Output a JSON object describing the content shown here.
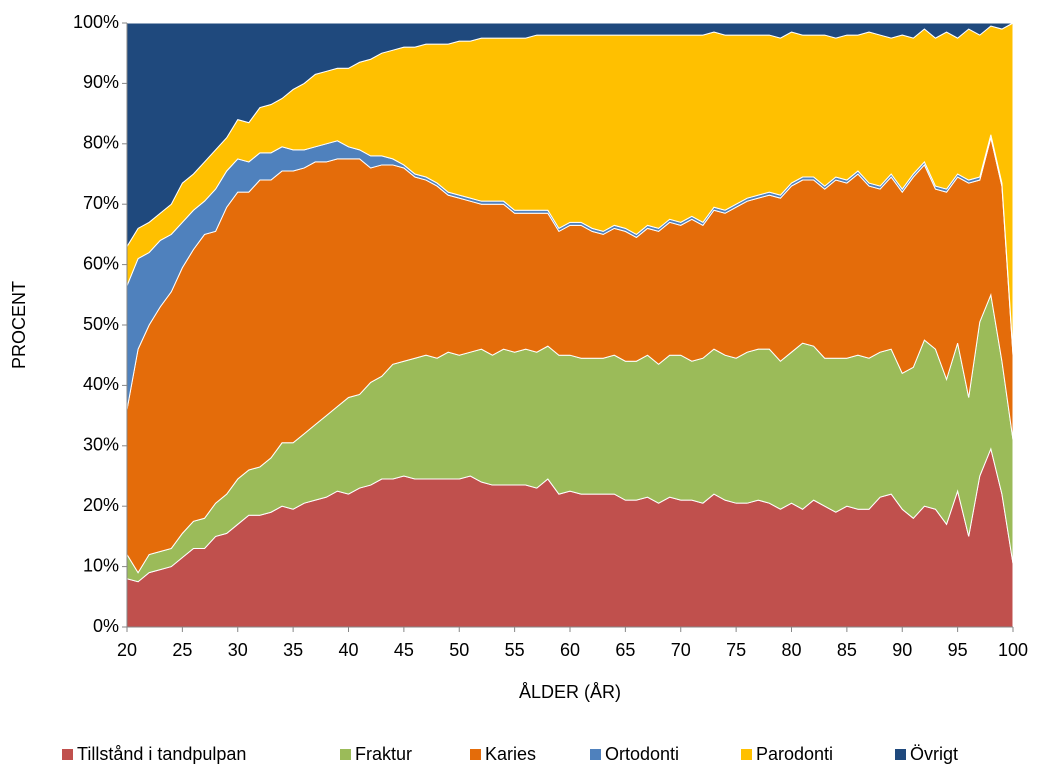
{
  "chart_data": {
    "type": "stacked_area",
    "y_label": "PROCENT",
    "x_label": "ÅLDER (ÅR)",
    "x": [
      20,
      21,
      22,
      23,
      24,
      25,
      26,
      27,
      28,
      29,
      30,
      31,
      32,
      33,
      34,
      35,
      36,
      37,
      38,
      39,
      40,
      41,
      42,
      43,
      44,
      45,
      46,
      47,
      48,
      49,
      50,
      51,
      52,
      53,
      54,
      55,
      56,
      57,
      58,
      59,
      60,
      61,
      62,
      63,
      64,
      65,
      66,
      67,
      68,
      69,
      70,
      71,
      72,
      73,
      74,
      75,
      76,
      77,
      78,
      79,
      80,
      81,
      82,
      83,
      84,
      85,
      86,
      87,
      88,
      89,
      90,
      91,
      92,
      93,
      94,
      95,
      96,
      97,
      98,
      99,
      100
    ],
    "xlim": [
      20,
      100
    ],
    "xticks": [
      20,
      25,
      30,
      35,
      40,
      45,
      50,
      55,
      60,
      65,
      70,
      75,
      80,
      85,
      90,
      95,
      100
    ],
    "ylim": [
      0,
      100
    ],
    "yticks": [
      {
        "value": 0,
        "label": "0%"
      },
      {
        "value": 10,
        "label": "10%"
      },
      {
        "value": 20,
        "label": "20%"
      },
      {
        "value": 30,
        "label": "30%"
      },
      {
        "value": 40,
        "label": "40%"
      },
      {
        "value": 50,
        "label": "50%"
      },
      {
        "value": 60,
        "label": "60%"
      },
      {
        "value": 70,
        "label": "70%"
      },
      {
        "value": 80,
        "label": "80%"
      },
      {
        "value": 90,
        "label": "90%"
      },
      {
        "value": 100,
        "label": "100%"
      }
    ],
    "legend": "bottom",
    "series": [
      {
        "name": "Tillstånd i tandpulpan",
        "color": "#c0504d",
        "values": [
          8,
          7.5,
          9,
          9.5,
          10,
          11.5,
          13,
          13,
          15,
          15.5,
          17,
          18.5,
          18.5,
          19,
          20,
          19.5,
          20.5,
          21,
          21.5,
          22.5,
          22,
          23,
          23.5,
          24.5,
          24.5,
          25,
          24.5,
          24.5,
          24.5,
          24.5,
          24.5,
          25,
          24,
          23.5,
          23.5,
          23.5,
          23.5,
          23,
          24.5,
          22,
          22.5,
          22,
          22,
          22,
          22,
          21,
          21,
          21.5,
          20.5,
          21.5,
          21,
          21,
          20.5,
          22,
          21,
          20.5,
          20.5,
          21,
          20.5,
          19.5,
          20.5,
          19.5,
          21,
          20,
          19,
          20,
          19.5,
          19.5,
          21.5,
          22,
          19.5,
          18,
          20,
          19.5,
          17,
          22.5,
          15,
          25,
          29.5,
          22,
          10.5
        ]
      },
      {
        "name": "Fraktur",
        "color": "#9bbb59",
        "values": [
          4,
          1.5,
          3,
          3,
          3,
          4,
          4.5,
          5,
          5.5,
          6.5,
          7.5,
          7.5,
          8,
          9,
          10.5,
          11,
          11.5,
          12.5,
          13.5,
          14,
          16,
          15.5,
          17,
          17,
          19,
          19,
          20,
          20.5,
          20,
          21,
          20.5,
          20.5,
          22,
          21.5,
          22.5,
          22,
          22.5,
          22.5,
          22,
          23,
          22.5,
          22.5,
          22.5,
          22.5,
          23,
          23,
          23,
          23.5,
          23,
          23.5,
          24,
          23,
          24,
          24,
          24,
          24,
          25,
          25,
          25.5,
          24.5,
          25,
          27.5,
          25.5,
          24.5,
          25.5,
          24.5,
          25.5,
          25,
          24,
          24,
          22.5,
          25,
          27.5,
          26.5,
          24,
          24.5,
          23,
          25.5,
          25.5,
          22,
          20.5
        ]
      },
      {
        "name": "Karies",
        "color": "#e46c0a",
        "values": [
          24,
          37,
          38,
          40.5,
          42.5,
          44,
          45,
          47,
          45,
          47.5,
          47.5,
          46,
          47.5,
          46,
          45,
          45,
          44,
          43.5,
          42,
          41,
          39.5,
          39,
          35.5,
          35,
          33,
          32,
          30,
          29,
          28.5,
          26,
          26,
          25,
          24,
          25,
          24,
          23,
          22.5,
          23,
          22,
          20.5,
          21.5,
          22,
          21,
          20.5,
          21,
          21.5,
          20.5,
          21,
          22,
          22,
          21.5,
          23.5,
          22,
          23,
          23.5,
          25,
          25,
          25,
          25.5,
          27,
          27.5,
          27,
          27.5,
          28,
          29.5,
          29,
          30,
          28.5,
          27,
          28.5,
          30,
          31.5,
          29,
          26.5,
          31,
          27.5,
          35.5,
          23.5,
          26,
          29,
          14
        ]
      },
      {
        "name": "Ortodonti",
        "color": "#4f81bd",
        "values": [
          20.5,
          15,
          12,
          11,
          9.5,
          7.5,
          6.5,
          5.5,
          7,
          6,
          5.5,
          5,
          4.5,
          4.5,
          4,
          3.5,
          3,
          2.5,
          3,
          3,
          2,
          1.5,
          2,
          1.5,
          1,
          0.5,
          0.5,
          0.5,
          0.5,
          0.5,
          0.5,
          0.5,
          0.5,
          0.5,
          0.5,
          0.5,
          0.5,
          0.5,
          0.5,
          0.5,
          0.5,
          0.5,
          0.5,
          0.5,
          0.5,
          0.5,
          0.5,
          0.5,
          0.5,
          0.5,
          0.5,
          0.5,
          0.5,
          0.5,
          0.5,
          0.5,
          0.5,
          0.5,
          0.5,
          0.5,
          0.5,
          0.5,
          0.5,
          0.5,
          0.5,
          0.5,
          0.5,
          0.5,
          0.5,
          0.5,
          0.5,
          0.5,
          0.5,
          0.5,
          0.5,
          0.5,
          0.5,
          0.5,
          0.5,
          0.5,
          0.5
        ]
      },
      {
        "name": "Parodonti",
        "color": "#ffc000",
        "values": [
          6.5,
          5,
          5,
          4.5,
          5,
          6.5,
          6,
          6.5,
          6.5,
          5.5,
          6.5,
          6.5,
          7.5,
          8,
          8,
          10,
          11,
          12,
          12,
          12,
          13,
          14.5,
          16,
          17,
          18,
          19.5,
          21,
          22,
          23,
          24.5,
          25.5,
          26,
          27,
          27,
          27,
          28.5,
          28.5,
          29,
          29,
          32,
          31,
          31,
          32,
          32.5,
          31.5,
          32,
          33,
          31.5,
          32,
          30.5,
          31,
          30,
          31,
          29,
          29,
          28,
          27,
          26.5,
          26,
          26,
          25,
          23.5,
          23.5,
          25,
          23,
          24,
          22.5,
          25,
          25,
          22.5,
          25.5,
          22.5,
          22,
          24.5,
          26,
          22.5,
          25,
          23.5,
          18,
          25.5,
          54.5
        ]
      },
      {
        "name": "Övrigt",
        "color": "#1f497d",
        "values": [
          37,
          34,
          33,
          31.5,
          30,
          26.5,
          25,
          23,
          21,
          19,
          16,
          16.5,
          14,
          13.5,
          12.5,
          11,
          10,
          8.5,
          8,
          7.5,
          7.5,
          6.5,
          6,
          5,
          4.5,
          4,
          4,
          3.5,
          3.5,
          3.5,
          3,
          3,
          2.5,
          2.5,
          2.5,
          2.5,
          2.5,
          2,
          2,
          2,
          2,
          2,
          2,
          2,
          2,
          2,
          2,
          2,
          2,
          2,
          2,
          2,
          2,
          1.5,
          2,
          2,
          2,
          2,
          2,
          2.5,
          1.5,
          2,
          2,
          2,
          2.5,
          2,
          2,
          1.5,
          2,
          2.5,
          2,
          2.5,
          1,
          2.5,
          1.5,
          2.5,
          1,
          2,
          0.5,
          1,
          0
        ]
      }
    ]
  }
}
